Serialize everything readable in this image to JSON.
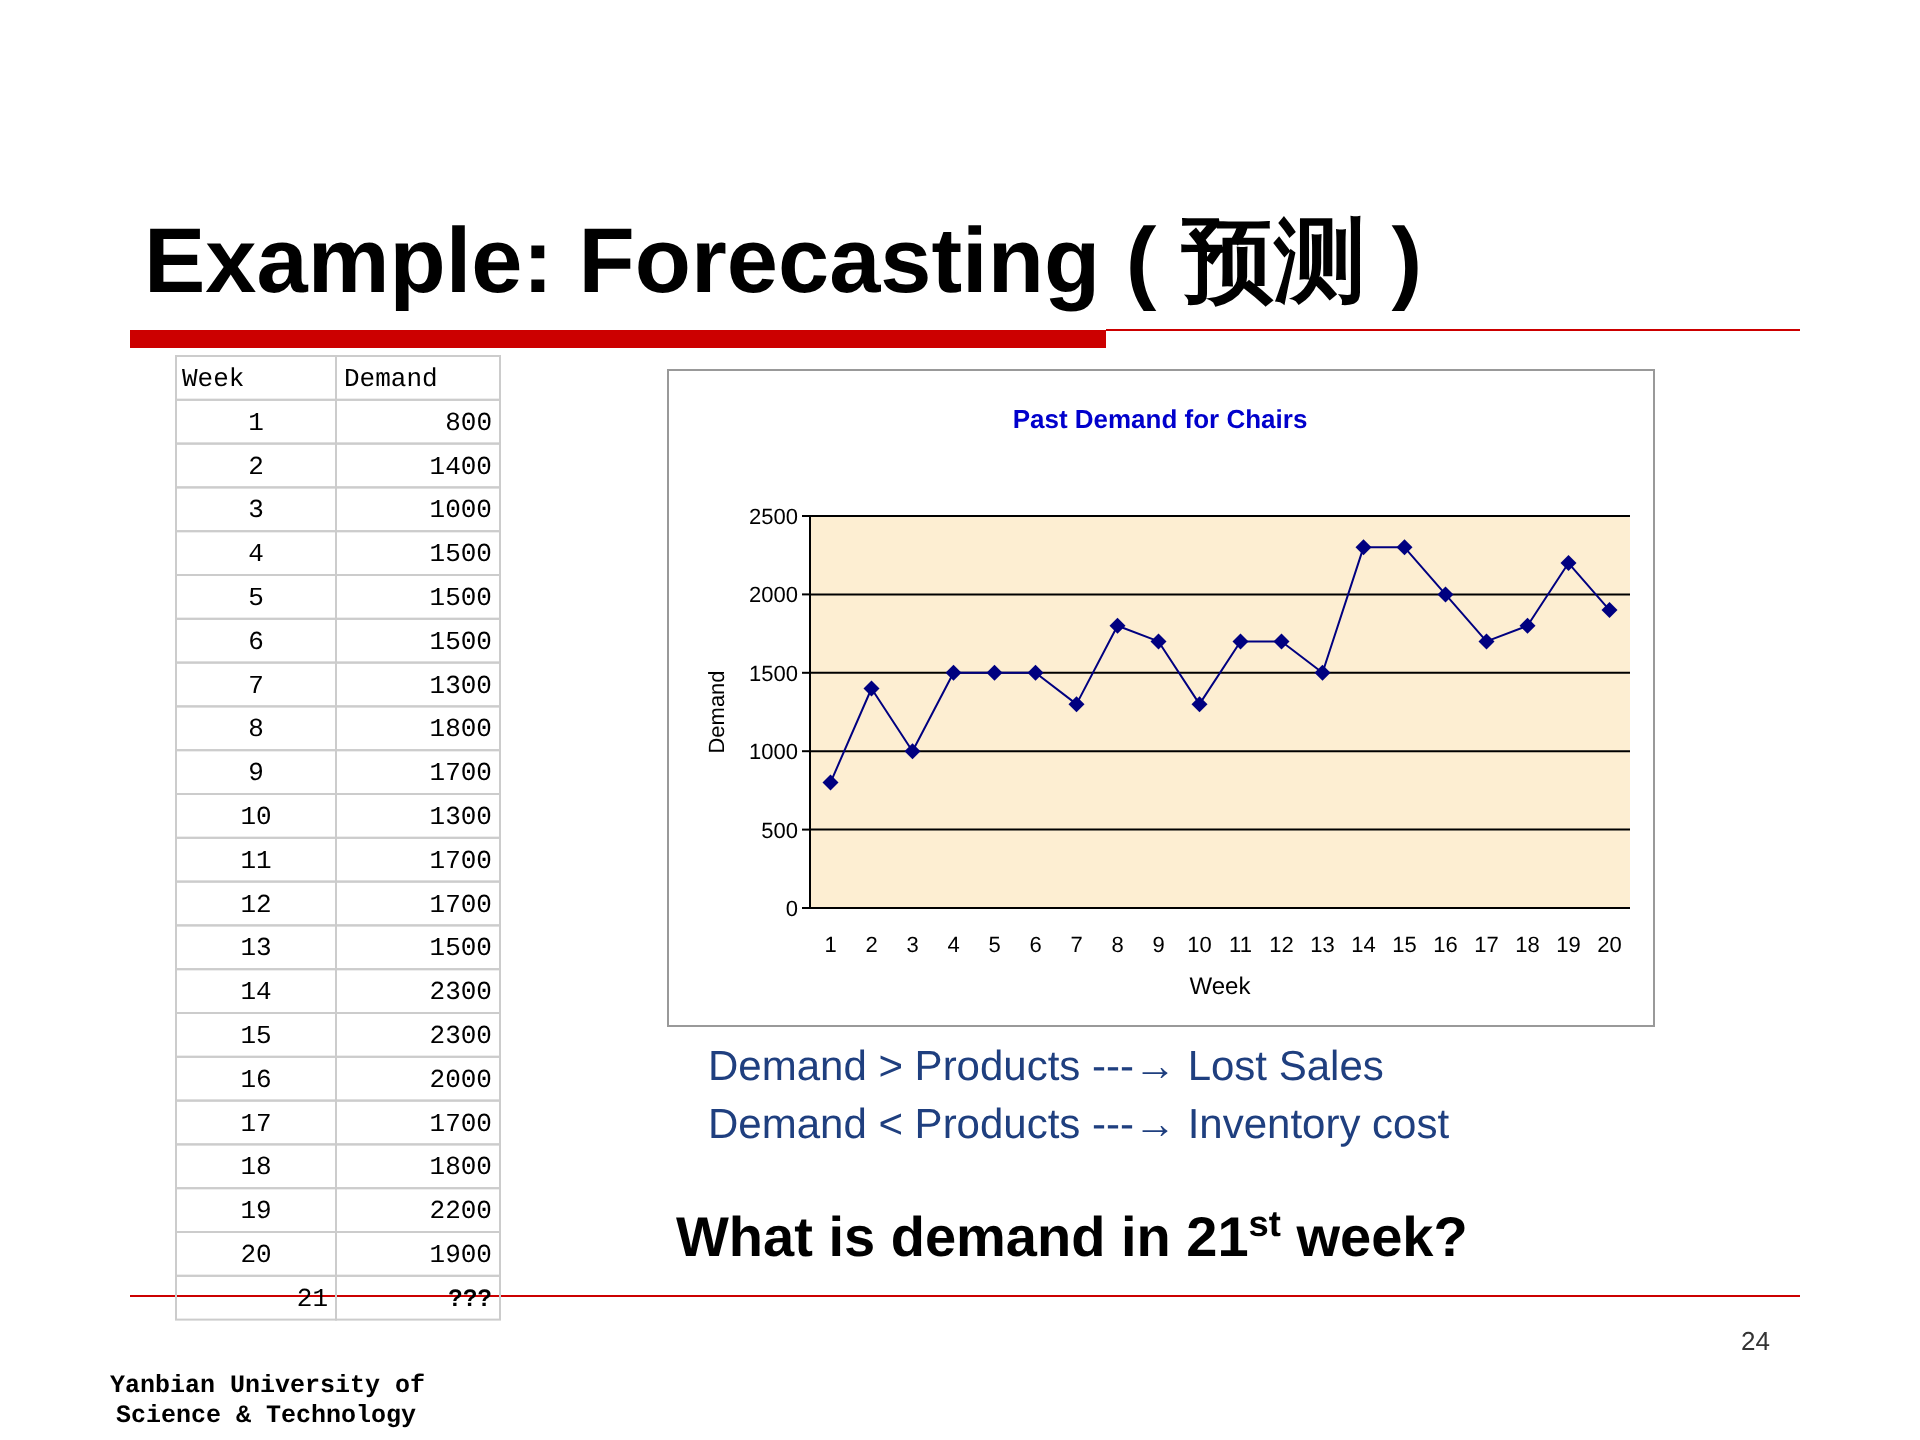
{
  "chart_data": {
    "type": "line",
    "title": "Example: Forecasting ( 预测 )",
    "subtitle": "Past Demand for Chairs",
    "xlabel": "Week",
    "ylabel": "Demand",
    "categories": [
      "1",
      "2",
      "3",
      "4",
      "5",
      "6",
      "7",
      "8",
      "9",
      "10",
      "11",
      "12",
      "13",
      "14",
      "15",
      "16",
      "17",
      "18",
      "19",
      "20"
    ],
    "series": [
      {
        "color": "#000080",
        "values": [
          800,
          1400,
          1000,
          1500,
          1500,
          1500,
          1300,
          1800,
          1700,
          1300,
          1700,
          1700,
          1500,
          2300,
          2300,
          2000,
          1700,
          1800,
          2200,
          1900
        ]
      }
    ],
    "ylim": [
      0,
      2500
    ],
    "yticks": [
      0,
      500,
      1000,
      1500,
      2000,
      2500
    ],
    "grid": "y",
    "marker": "diamond",
    "line_style": "solid",
    "annotations": [
      "21",
      "???",
      "Demand > Products  ---→ Lost Sales",
      "Demand < Products  ---→ Inventory cost",
      "What is demand in 21$^{st}$ week?",
      "24",
      "Yanbian University of",
      "Science & Technology",
      "800",
      "1400",
      "1000",
      "1500",
      "1500",
      "1500",
      "1300",
      "1800",
      "1700",
      "1300",
      "1700",
      "1700",
      "1500",
      "2300",
      "2300",
      "2000",
      "1700",
      "1800",
      "2200",
      "1900"
    ]
  }
}
